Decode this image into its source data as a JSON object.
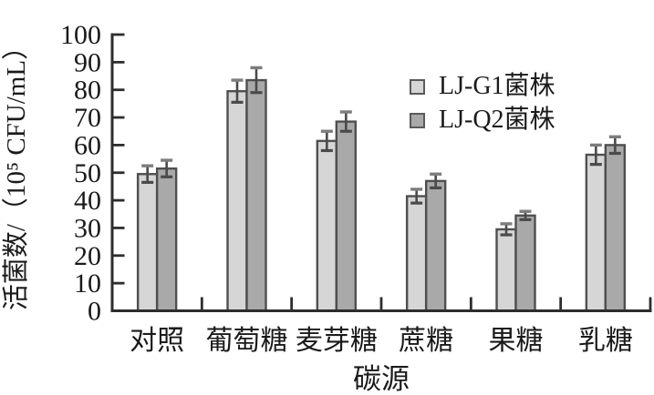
{
  "figure": {
    "background": "#ffffff",
    "text_color": "#1a1a1a"
  },
  "chart_data": {
    "type": "bar",
    "title": "",
    "xlabel": "碳源",
    "ylabel": "活菌数/（10⁵ CFU/mL）",
    "categories": [
      "对照",
      "葡萄糖",
      "麦芽糖",
      "蔗糖",
      "果糖",
      "乳糖"
    ],
    "series": [
      {
        "name": "LJ-G1菌株",
        "color": "#d6d6d6",
        "values": [
          49.5,
          79.5,
          61.5,
          41.5,
          29.5,
          56.5
        ],
        "errors": [
          3,
          4,
          3.5,
          2.5,
          2,
          3.5
        ]
      },
      {
        "name": "LJ-Q2菌株",
        "color": "#a9a9a9",
        "values": [
          51.5,
          83.5,
          68.5,
          47,
          34.5,
          60
        ],
        "errors": [
          3,
          4.5,
          3.5,
          2.5,
          1.5,
          3
        ]
      }
    ],
    "ylim": [
      0,
      100
    ],
    "ytick_step": 10,
    "yticks": [
      0,
      10,
      20,
      30,
      40,
      50,
      60,
      70,
      80,
      90,
      100
    ],
    "grid": false,
    "error_bars": true,
    "legend_position": "upper-right-inside",
    "bar_edge_color": "#4f4f4f",
    "error_bar_color": "#4a4a4a",
    "error_cap_color": "#7d7d7d",
    "axis_color": "#2d2d2d"
  }
}
